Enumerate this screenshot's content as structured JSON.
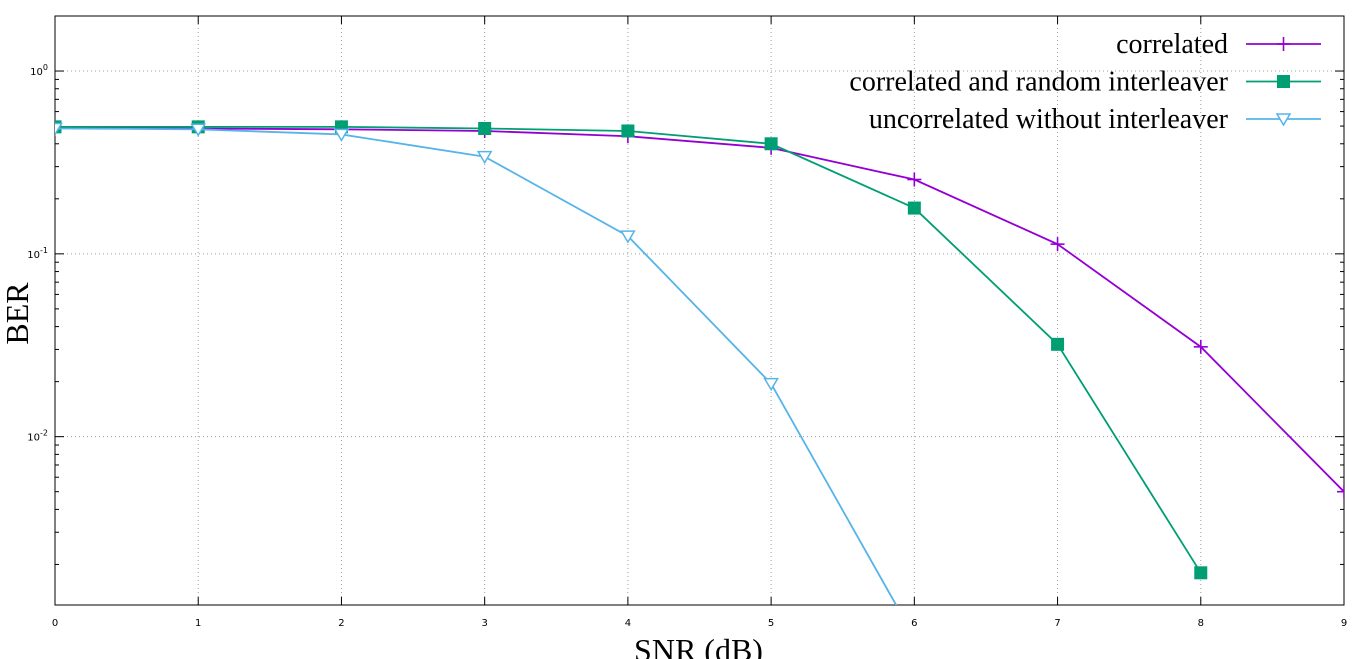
{
  "chart_data": {
    "type": "line",
    "title": "",
    "xlabel": "SNR (dB)",
    "ylabel": "BER",
    "xlim": [
      0,
      9
    ],
    "ylim": [
      0.0012,
      2.0
    ],
    "y_scale": "log",
    "x_ticks": [
      "0",
      "1",
      "2",
      "3",
      "4",
      "5",
      "6",
      "7",
      "8",
      "9"
    ],
    "y_ticks": [
      {
        "value": 1,
        "base": "10",
        "exp": "0"
      },
      {
        "value": 0.1,
        "base": "10",
        "exp": "-1"
      },
      {
        "value": 0.01,
        "base": "10",
        "exp": "-2"
      }
    ],
    "grid": true,
    "legend_position": "top-right",
    "series": [
      {
        "name": "correlated",
        "color": "#9400d3",
        "marker": "plus",
        "x": [
          0,
          1,
          2,
          3,
          4,
          5,
          6,
          7,
          8,
          9
        ],
        "y": [
          0.49,
          0.485,
          0.48,
          0.47,
          0.44,
          0.38,
          0.255,
          0.113,
          0.031,
          0.005
        ]
      },
      {
        "name": "correlated and random interleaver",
        "color": "#009e73",
        "marker": "filled-square",
        "x": [
          0,
          1,
          2,
          3,
          4,
          5,
          6,
          7,
          8
        ],
        "y": [
          0.495,
          0.495,
          0.495,
          0.485,
          0.47,
          0.4,
          0.178,
          0.032,
          0.0018
        ]
      },
      {
        "name": "uncorrelated without interleaver",
        "color": "#56b4e9",
        "marker": "open-triangle-down",
        "x": [
          0,
          1,
          2,
          3,
          4,
          5,
          6
        ],
        "y": [
          0.485,
          0.48,
          0.45,
          0.34,
          0.125,
          0.0195,
          0.0008
        ]
      }
    ]
  }
}
